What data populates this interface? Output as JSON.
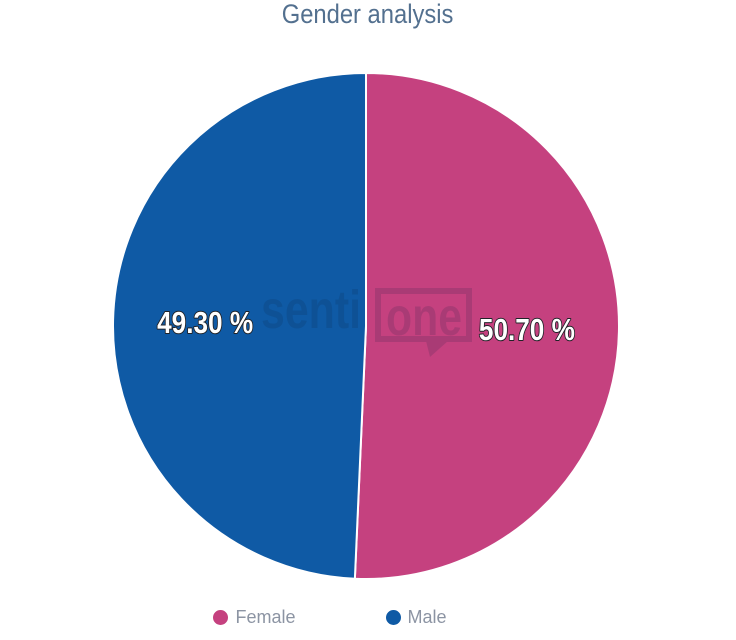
{
  "title": "Gender analysis",
  "watermark": {
    "part1": "senti",
    "part2": "one",
    "color": "#0A1E3C",
    "opacity": 0.14
  },
  "chart_data": {
    "type": "pie",
    "title": "Gender analysis",
    "categories": [
      "Female",
      "Male"
    ],
    "values": [
      50.7,
      49.3
    ],
    "labels": [
      "50.70 %",
      "49.30 %"
    ],
    "colors": [
      "#C5417F",
      "#0F5AA5"
    ],
    "start_angle_deg": 0,
    "direction": "clockwise",
    "slice_border_color": "#ffffff",
    "legend_position": "bottom",
    "background": "#ffffff"
  },
  "legend": {
    "items": [
      {
        "label": "Female",
        "color": "#C5417F"
      },
      {
        "label": "Male",
        "color": "#0F5AA5"
      }
    ]
  }
}
